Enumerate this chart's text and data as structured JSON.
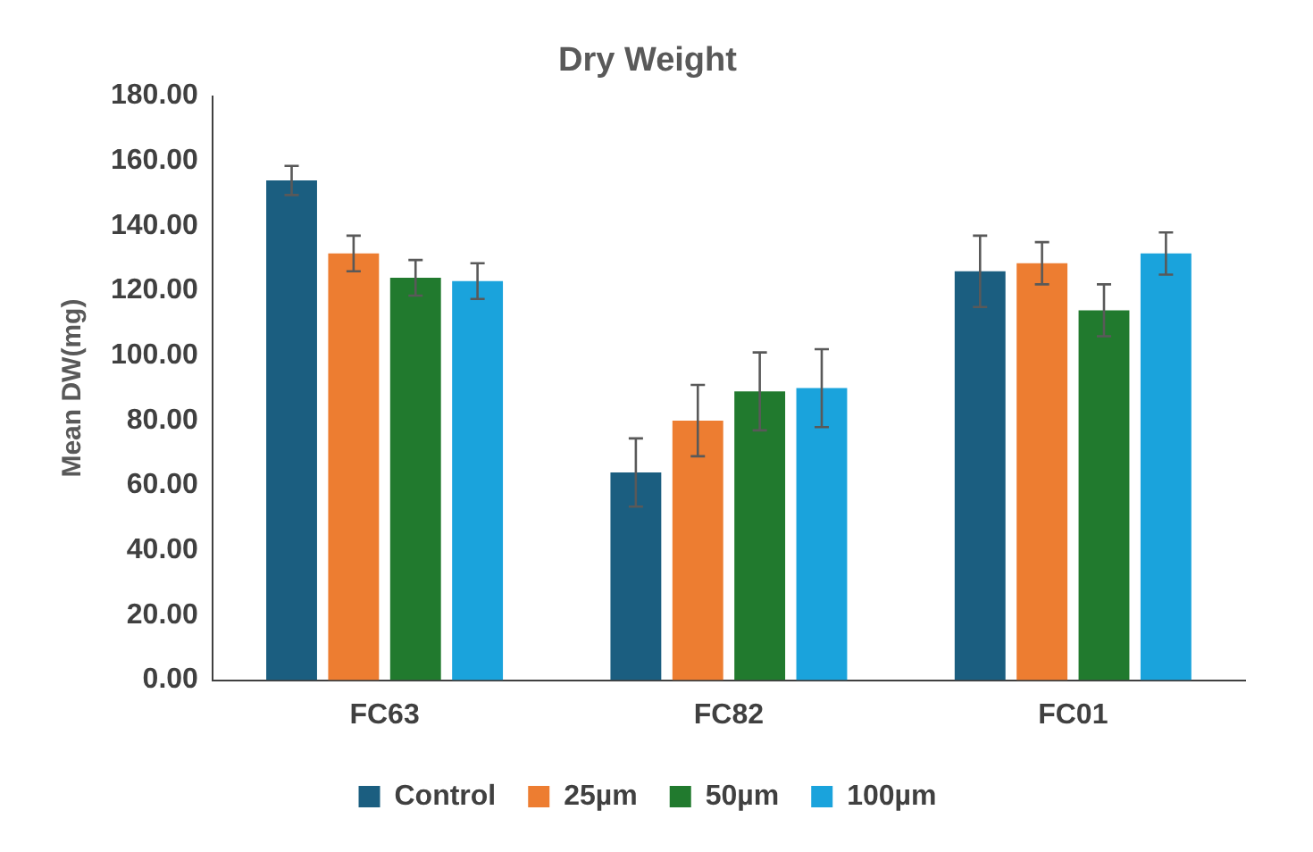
{
  "chart_data": {
    "type": "bar",
    "title": "Dry Weight",
    "ylabel": "Mean DW(mg)",
    "categories": [
      "FC63",
      "FC82",
      "FC01"
    ],
    "series": [
      {
        "name": "Control",
        "color": "#1b5e80",
        "values": [
          154,
          64,
          126
        ],
        "errors": [
          4.5,
          10.5,
          11
        ]
      },
      {
        "name": "25µm",
        "color": "#ed7d31",
        "values": [
          131.5,
          80,
          128.5
        ],
        "errors": [
          5.5,
          11,
          6.5
        ]
      },
      {
        "name": "50µm",
        "color": "#217a2e",
        "values": [
          124,
          89,
          114
        ],
        "errors": [
          5.5,
          12,
          8
        ]
      },
      {
        "name": "100µm",
        "color": "#1aa3dc",
        "values": [
          123,
          90,
          131.5
        ],
        "errors": [
          5.5,
          12,
          6.5
        ]
      }
    ],
    "ylim": [
      0,
      180
    ],
    "yticks": [
      {
        "value": 0,
        "label": "0.00"
      },
      {
        "value": 20,
        "label": "20.00"
      },
      {
        "value": 40,
        "label": "40.00"
      },
      {
        "value": 60,
        "label": "60.00"
      },
      {
        "value": 80,
        "label": "80.00"
      },
      {
        "value": 100,
        "label": "100.00"
      },
      {
        "value": 120,
        "label": "120.00"
      },
      {
        "value": 140,
        "label": "140.00"
      },
      {
        "value": 160,
        "label": "160.00"
      },
      {
        "value": 180,
        "label": "180.00"
      }
    ],
    "grid": false,
    "legend": "bottom"
  }
}
